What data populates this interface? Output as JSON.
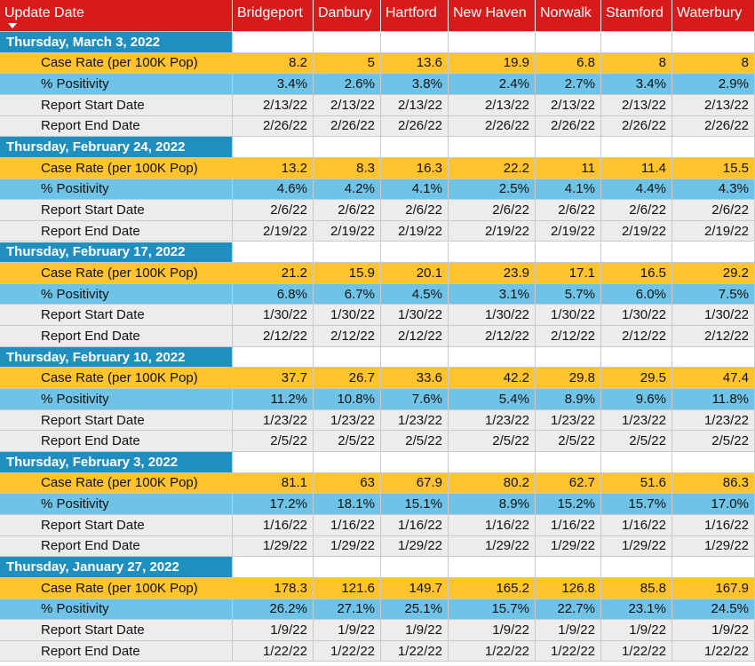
{
  "header": {
    "columns": [
      "Update Date",
      "Bridgeport",
      "Danbury",
      "Hartford",
      "New Haven",
      "Norwalk",
      "Stamford",
      "Waterbury"
    ]
  },
  "groups": [
    {
      "date": "Thursday, March 3, 2022",
      "rows": [
        {
          "label": "Case Rate (per 100K Pop)",
          "values": [
            "8.2",
            "5",
            "13.6",
            "19.9",
            "6.8",
            "8",
            "8"
          ]
        },
        {
          "label": "% Positivity",
          "values": [
            "3.4%",
            "2.6%",
            "3.8%",
            "2.4%",
            "2.7%",
            "3.4%",
            "2.9%"
          ]
        },
        {
          "label": "Report Start Date",
          "values": [
            "2/13/22",
            "2/13/22",
            "2/13/22",
            "2/13/22",
            "2/13/22",
            "2/13/22",
            "2/13/22"
          ]
        },
        {
          "label": "Report End Date",
          "values": [
            "2/26/22",
            "2/26/22",
            "2/26/22",
            "2/26/22",
            "2/26/22",
            "2/26/22",
            "2/26/22"
          ]
        }
      ]
    },
    {
      "date": "Thursday, February 24, 2022",
      "rows": [
        {
          "label": "Case Rate (per 100K Pop)",
          "values": [
            "13.2",
            "8.3",
            "16.3",
            "22.2",
            "11",
            "11.4",
            "15.5"
          ]
        },
        {
          "label": "% Positivity",
          "values": [
            "4.6%",
            "4.2%",
            "4.1%",
            "2.5%",
            "4.1%",
            "4.4%",
            "4.3%"
          ]
        },
        {
          "label": "Report Start Date",
          "values": [
            "2/6/22",
            "2/6/22",
            "2/6/22",
            "2/6/22",
            "2/6/22",
            "2/6/22",
            "2/6/22"
          ]
        },
        {
          "label": "Report End Date",
          "values": [
            "2/19/22",
            "2/19/22",
            "2/19/22",
            "2/19/22",
            "2/19/22",
            "2/19/22",
            "2/19/22"
          ]
        }
      ]
    },
    {
      "date": "Thursday, February 17, 2022",
      "rows": [
        {
          "label": "Case Rate (per 100K Pop)",
          "values": [
            "21.2",
            "15.9",
            "20.1",
            "23.9",
            "17.1",
            "16.5",
            "29.2"
          ]
        },
        {
          "label": "% Positivity",
          "values": [
            "6.8%",
            "6.7%",
            "4.5%",
            "3.1%",
            "5.7%",
            "6.0%",
            "7.5%"
          ]
        },
        {
          "label": "Report Start Date",
          "values": [
            "1/30/22",
            "1/30/22",
            "1/30/22",
            "1/30/22",
            "1/30/22",
            "1/30/22",
            "1/30/22"
          ]
        },
        {
          "label": "Report End Date",
          "values": [
            "2/12/22",
            "2/12/22",
            "2/12/22",
            "2/12/22",
            "2/12/22",
            "2/12/22",
            "2/12/22"
          ]
        }
      ]
    },
    {
      "date": "Thursday, February 10, 2022",
      "rows": [
        {
          "label": "Case Rate (per 100K Pop)",
          "values": [
            "37.7",
            "26.7",
            "33.6",
            "42.2",
            "29.8",
            "29.5",
            "47.4"
          ]
        },
        {
          "label": "% Positivity",
          "values": [
            "11.2%",
            "10.8%",
            "7.6%",
            "5.4%",
            "8.9%",
            "9.6%",
            "11.8%"
          ]
        },
        {
          "label": "Report Start Date",
          "values": [
            "1/23/22",
            "1/23/22",
            "1/23/22",
            "1/23/22",
            "1/23/22",
            "1/23/22",
            "1/23/22"
          ]
        },
        {
          "label": "Report End Date",
          "values": [
            "2/5/22",
            "2/5/22",
            "2/5/22",
            "2/5/22",
            "2/5/22",
            "2/5/22",
            "2/5/22"
          ]
        }
      ]
    },
    {
      "date": "Thursday, February 3, 2022",
      "rows": [
        {
          "label": "Case Rate (per 100K Pop)",
          "values": [
            "81.1",
            "63",
            "67.9",
            "80.2",
            "62.7",
            "51.6",
            "86.3"
          ]
        },
        {
          "label": "% Positivity",
          "values": [
            "17.2%",
            "18.1%",
            "15.1%",
            "8.9%",
            "15.2%",
            "15.7%",
            "17.0%"
          ]
        },
        {
          "label": "Report Start Date",
          "values": [
            "1/16/22",
            "1/16/22",
            "1/16/22",
            "1/16/22",
            "1/16/22",
            "1/16/22",
            "1/16/22"
          ]
        },
        {
          "label": "Report End Date",
          "values": [
            "1/29/22",
            "1/29/22",
            "1/29/22",
            "1/29/22",
            "1/29/22",
            "1/29/22",
            "1/29/22"
          ]
        }
      ]
    },
    {
      "date": "Thursday, January 27, 2022",
      "rows": [
        {
          "label": "Case Rate (per 100K Pop)",
          "values": [
            "178.3",
            "121.6",
            "149.7",
            "165.2",
            "126.8",
            "85.8",
            "167.9"
          ]
        },
        {
          "label": "% Positivity",
          "values": [
            "26.2%",
            "27.1%",
            "25.1%",
            "15.7%",
            "22.7%",
            "23.1%",
            "24.5%"
          ]
        },
        {
          "label": "Report Start Date",
          "values": [
            "1/9/22",
            "1/9/22",
            "1/9/22",
            "1/9/22",
            "1/9/22",
            "1/9/22",
            "1/9/22"
          ]
        },
        {
          "label": "Report End Date",
          "values": [
            "1/22/22",
            "1/22/22",
            "1/22/22",
            "1/22/22",
            "1/22/22",
            "1/22/22",
            "1/22/22"
          ]
        }
      ]
    }
  ]
}
